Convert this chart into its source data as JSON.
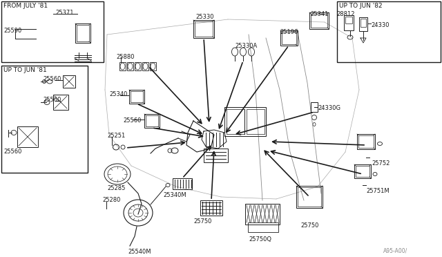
{
  "bg_color": "#f0f0ec",
  "line_color": "#1a1a1a",
  "fig_w": 6.4,
  "fig_h": 3.72,
  "dpi": 100,
  "labels": {
    "from_july_81": "FROM JULY '81",
    "up_to_jun_81": "UP TO JUN '81",
    "up_to_jun_82": "UP TO JUN '82",
    "watermark": "A95-A00/",
    "p25590": "25590",
    "p25371": "25371",
    "p25560a": "25560",
    "p25560b": "25560",
    "p25560c": "25560",
    "p25340": "25340",
    "p25251": "25251",
    "p25285": "25285",
    "p25280": "25280",
    "p25880": "25880",
    "p25330": "25330",
    "p25330A": "25330A",
    "p25190": "25190",
    "p25340M": "25340M",
    "p25540M": "25540M",
    "p25750a": "25750",
    "p25750Q": "25750Q",
    "p25750b": "25750",
    "p25752": "25752",
    "p25751M": "25751M",
    "p25341": "25341",
    "p28812": "28812",
    "p24330G": "24330G",
    "p24330": "24330"
  }
}
